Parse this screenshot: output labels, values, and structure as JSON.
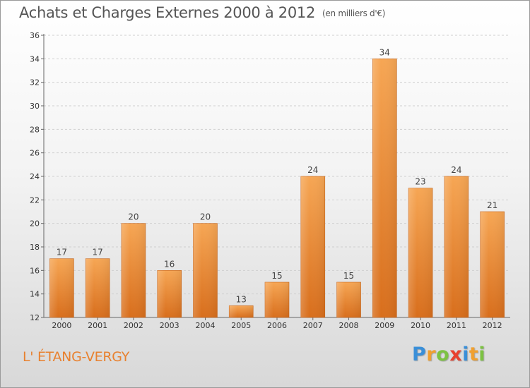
{
  "header": {
    "title": "Achats et Charges Externes 2000 à 2012",
    "unit": "(en milliers d'€)"
  },
  "footer": {
    "commune": "L' ÉTANG-VERGY",
    "logo_letters": [
      {
        "char": "P",
        "color": "#3a8fd8"
      },
      {
        "char": "r",
        "color": "#f0a030"
      },
      {
        "char": "o",
        "color": "#7cc242"
      },
      {
        "char": "x",
        "color": "#e8412f"
      },
      {
        "char": "i",
        "color": "#3a8fd8"
      },
      {
        "char": "t",
        "color": "#f0a030"
      },
      {
        "char": "i",
        "color": "#7cc242"
      }
    ]
  },
  "chart_data": {
    "type": "bar",
    "title": "Achats et Charges Externes 2000 à 2012",
    "subtitle": "(en milliers d'€)",
    "categories": [
      "2000",
      "2001",
      "2002",
      "2003",
      "2004",
      "2005",
      "2006",
      "2007",
      "2008",
      "2009",
      "2010",
      "2011",
      "2012"
    ],
    "values": [
      17,
      17,
      20,
      16,
      20,
      13,
      15,
      24,
      15,
      34,
      23,
      24,
      21
    ],
    "ylim": [
      12,
      36
    ],
    "yticks": [
      12,
      14,
      16,
      18,
      20,
      22,
      24,
      26,
      28,
      30,
      32,
      34,
      36
    ],
    "grid": true,
    "bar_color_top": "#f6a654",
    "bar_color_bottom": "#d86e1c"
  }
}
